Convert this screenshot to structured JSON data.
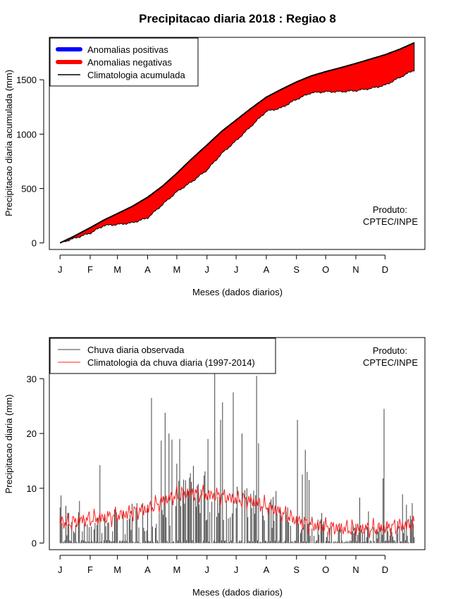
{
  "page": {
    "title": "Precipitacao diaria 2018 : Regiao 8"
  },
  "colors": {
    "positive": "#0000ff",
    "negative": "#ff0000",
    "climatology": "#000000",
    "observed": "#404040",
    "daily_climatology": "#ff2020"
  },
  "chart_data": [
    {
      "type": "area",
      "ylabel": "Precipitacao diaria acumulada (mm)",
      "xlabel": "Meses (dados diarios)",
      "months": [
        "J",
        "F",
        "M",
        "A",
        "M",
        "J",
        "J",
        "A",
        "S",
        "O",
        "N",
        "D"
      ],
      "month_days": [
        1,
        32,
        60,
        91,
        121,
        152,
        182,
        213,
        244,
        274,
        305,
        335
      ],
      "yticks": [
        0,
        500,
        1000,
        1500
      ],
      "ylim": [
        -60,
        1890
      ],
      "xlim": [
        -10,
        376
      ],
      "legend": [
        "Anomalias positivas",
        "Anomalias negativas",
        "Climatologia acumulada"
      ],
      "annotation": [
        "Produto:",
        "CPTEC/INPE"
      ],
      "series": [
        {
          "name": "Climatologia acumulada",
          "days": [
            1,
            15,
            32,
            46,
            60,
            75,
            91,
            106,
            121,
            136,
            152,
            167,
            182,
            197,
            213,
            228,
            244,
            259,
            274,
            289,
            305,
            320,
            335,
            350,
            365
          ],
          "values": [
            0,
            60,
            140,
            210,
            270,
            335,
            420,
            520,
            640,
            770,
            900,
            1025,
            1130,
            1235,
            1340,
            1410,
            1480,
            1535,
            1575,
            1610,
            1650,
            1690,
            1730,
            1780,
            1840
          ]
        },
        {
          "name": "Observada acumulada",
          "days": [
            1,
            15,
            32,
            46,
            60,
            75,
            91,
            106,
            121,
            136,
            152,
            167,
            182,
            197,
            213,
            228,
            244,
            259,
            274,
            289,
            305,
            320,
            335,
            350,
            365
          ],
          "values": [
            0,
            40,
            90,
            160,
            170,
            185,
            230,
            350,
            470,
            560,
            670,
            820,
            940,
            1070,
            1210,
            1240,
            1320,
            1380,
            1390,
            1390,
            1400,
            1420,
            1450,
            1520,
            1590
          ]
        }
      ]
    },
    {
      "type": "bar",
      "ylabel": "Precipitacao diaria (mm)",
      "xlabel": "Meses (dados diarios)",
      "months": [
        "J",
        "F",
        "M",
        "A",
        "M",
        "J",
        "J",
        "A",
        "S",
        "O",
        "N",
        "D"
      ],
      "month_days": [
        1,
        32,
        60,
        91,
        121,
        152,
        182,
        213,
        244,
        274,
        305,
        335
      ],
      "yticks": [
        0,
        10,
        20,
        30
      ],
      "ylim": [
        -1.2,
        37.5
      ],
      "xlim": [
        -10,
        376
      ],
      "legend": [
        "Chuva diaria observada",
        "Climatologia da chuva diaria (1997-2014)"
      ],
      "annotation": [
        "Produto:",
        "CPTEC/INPE"
      ],
      "series": [
        {
          "name": "Chuva diaria observada",
          "peaks": [
            [
              1,
              6.5
            ],
            [
              2,
              8.7
            ],
            [
              7,
              6.8
            ],
            [
              10,
              5.5
            ],
            [
              21,
              7.7
            ],
            [
              42,
              14.2
            ],
            [
              91,
              7.0
            ],
            [
              95,
              26.5
            ],
            [
              100,
              3.5
            ],
            [
              105,
              18.7
            ],
            [
              109,
              23.8
            ],
            [
              113,
              20.0
            ],
            [
              116,
              18.9
            ],
            [
              121,
              14.5
            ],
            [
              124,
              19.0
            ],
            [
              133,
              9.5
            ],
            [
              138,
              14.1
            ],
            [
              143,
              10.8
            ],
            [
              145,
              5.5
            ],
            [
              150,
              13.1
            ],
            [
              153,
              19.0
            ],
            [
              160,
              31.2
            ],
            [
              163,
              8.5
            ],
            [
              166,
              22.5
            ],
            [
              168,
              25.7
            ],
            [
              174,
              4.5
            ],
            [
              179,
              27.5
            ],
            [
              188,
              20.0
            ],
            [
              193,
              10.0
            ],
            [
              197,
              9.0
            ],
            [
              203,
              30.5
            ],
            [
              205,
              18.2
            ],
            [
              210,
              5.0
            ],
            [
              218,
              8.0
            ],
            [
              223,
              9.5
            ],
            [
              235,
              6.5
            ],
            [
              245,
              22.5
            ],
            [
              250,
              12.5
            ],
            [
              253,
              17.0
            ],
            [
              255,
              13.0
            ],
            [
              257,
              11.5
            ],
            [
              270,
              5.5
            ],
            [
              290,
              2.5
            ],
            [
              305,
              3.5
            ],
            [
              309,
              8.3
            ],
            [
              318,
              5.8
            ],
            [
              333,
              11.8
            ],
            [
              334,
              24.5
            ],
            [
              348,
              4.0
            ],
            [
              353,
              8.9
            ],
            [
              357,
              7.0
            ],
            [
              361,
              5.0
            ],
            [
              363,
              7.3
            ],
            [
              364,
              3.5
            ]
          ]
        },
        {
          "name": "Climatologia da chuva diaria (1997-2014)",
          "days": [
            1,
            10,
            20,
            32,
            45,
            60,
            75,
            91,
            106,
            121,
            136,
            152,
            167,
            182,
            197,
            213,
            228,
            244,
            259,
            274,
            289,
            305,
            320,
            335,
            350,
            365
          ],
          "values": [
            4.0,
            3.6,
            4.1,
            4.4,
            4.6,
            5.0,
            5.6,
            6.2,
            7.6,
            8.7,
            9.2,
            8.8,
            8.6,
            8.0,
            7.7,
            6.7,
            5.6,
            4.1,
            3.3,
            3.0,
            2.7,
            2.6,
            2.6,
            2.8,
            3.1,
            3.5
          ]
        }
      ]
    }
  ]
}
